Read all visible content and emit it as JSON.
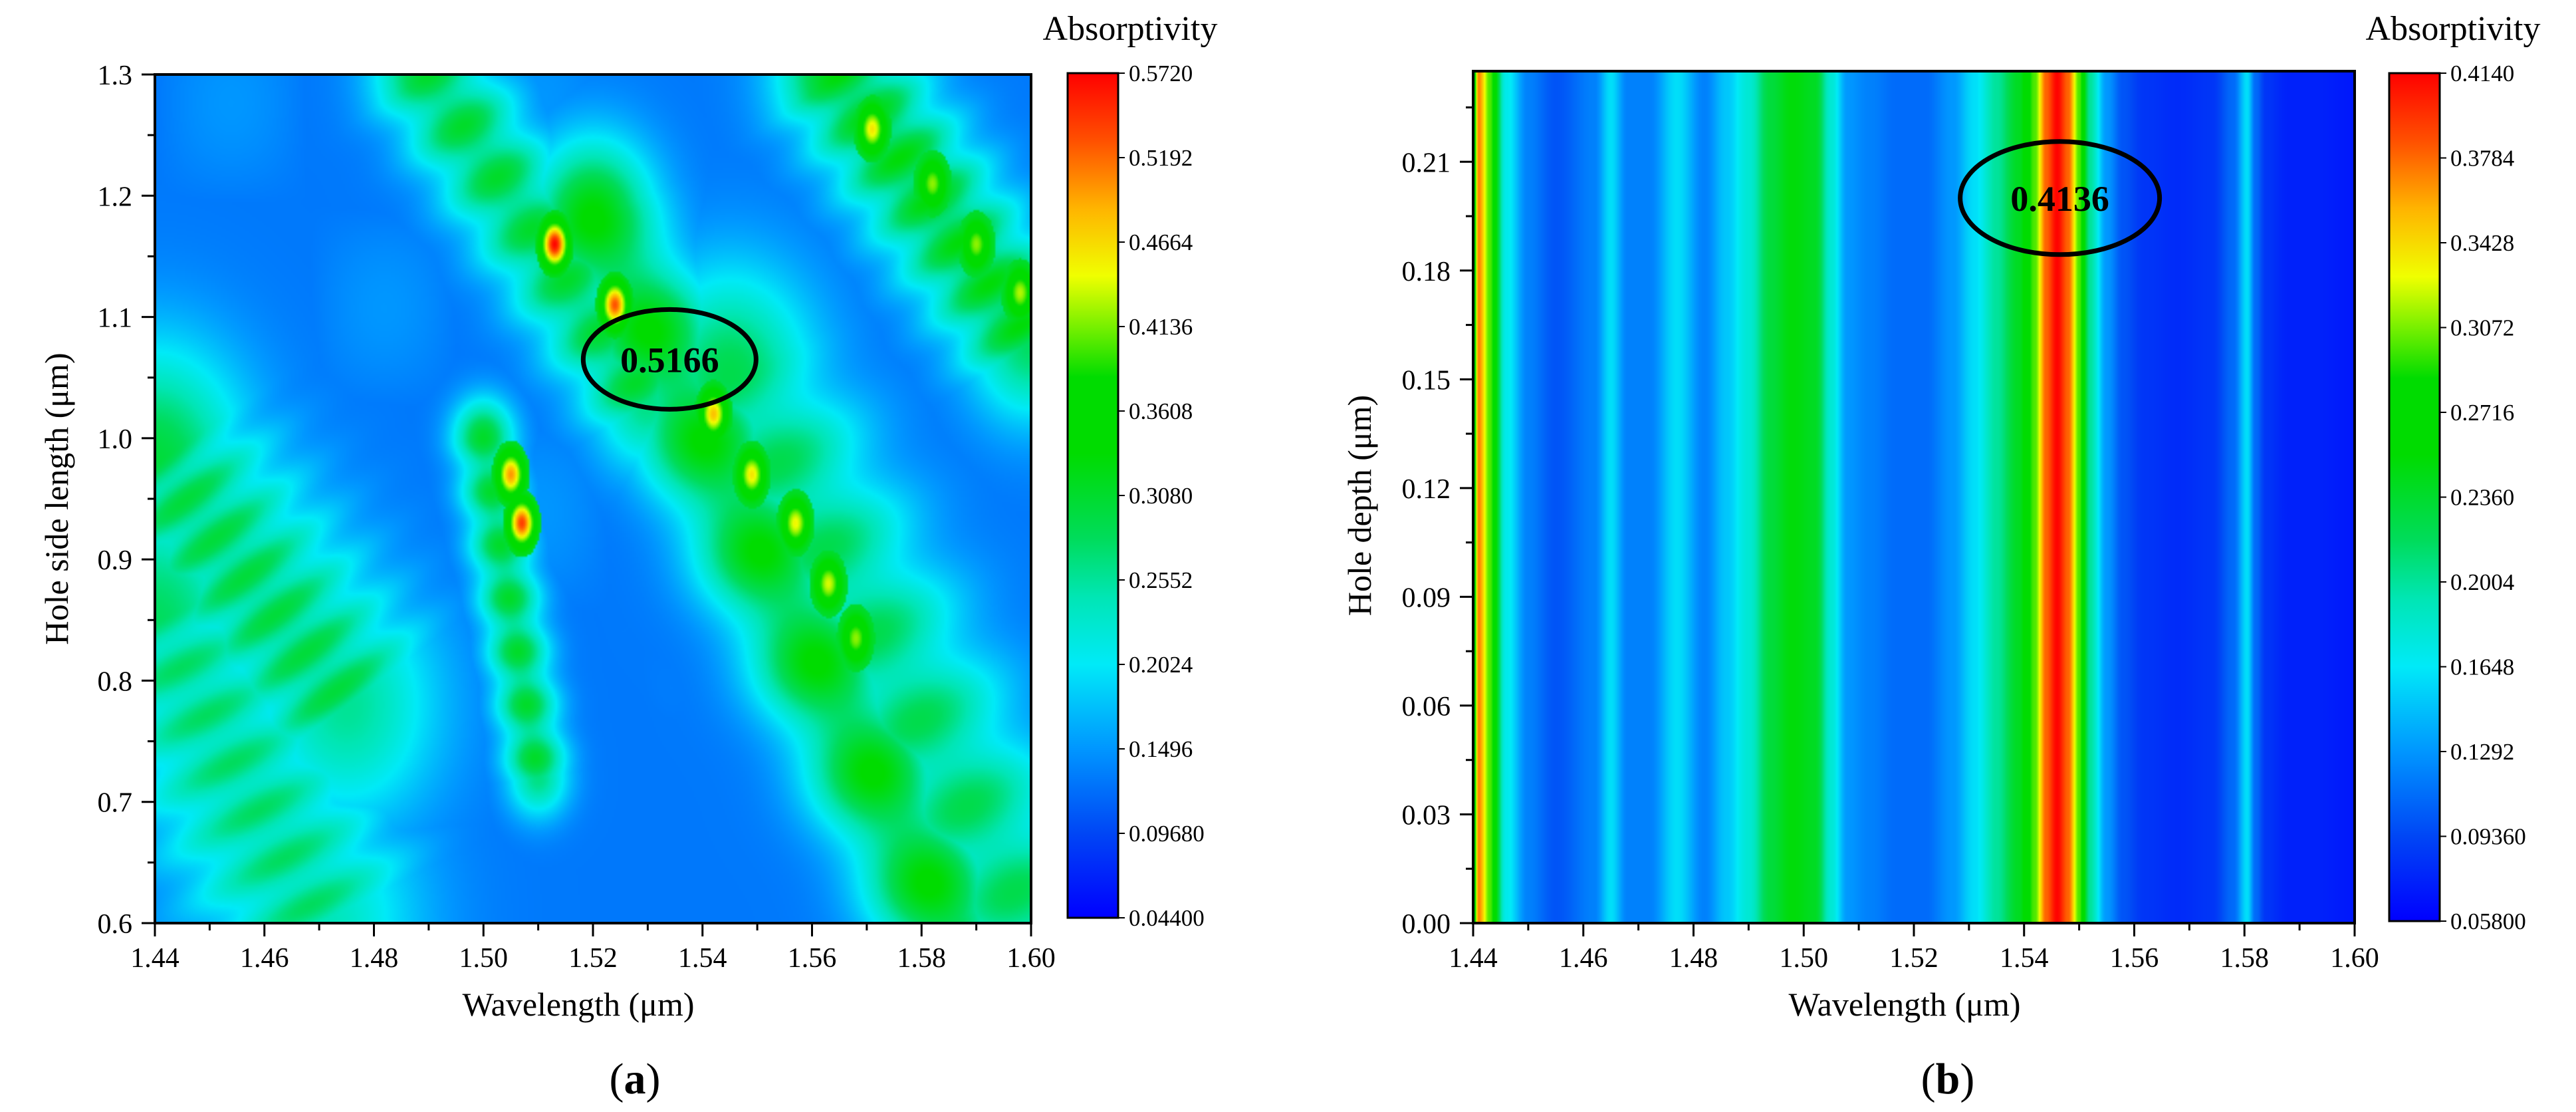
{
  "chart_data": [
    {
      "type": "heatmap",
      "panel_label": "a",
      "xlabel": "Wavelength (μm)",
      "ylabel": "Hole side length (μm)",
      "x_range": [
        1.44,
        1.6
      ],
      "y_range": [
        0.6,
        1.3
      ],
      "x_ticks": [
        "1.44",
        "1.46",
        "1.48",
        "1.50",
        "1.52",
        "1.54",
        "1.56",
        "1.58",
        "1.60"
      ],
      "y_ticks": [
        "0.6",
        "0.7",
        "0.8",
        "0.9",
        "1.0",
        "1.1",
        "1.2",
        "1.3"
      ],
      "colorbar": {
        "title": "Absorptivity",
        "min": 0.044,
        "max": 0.572,
        "tick_labels": [
          "0.5720",
          "0.5192",
          "0.4664",
          "0.4136",
          "0.3608",
          "0.3080",
          "0.2552",
          "0.2024",
          "0.1496",
          "0.09680",
          "0.04400"
        ]
      },
      "background_value": 0.13,
      "features": [
        {
          "kind": "band",
          "from": [
            1.44,
            0.98
          ],
          "to": [
            1.475,
            0.78
          ],
          "value": 0.3,
          "width_x": 0.012
        },
        {
          "kind": "band",
          "from": [
            1.44,
            0.85
          ],
          "to": [
            1.47,
            0.6
          ],
          "value": 0.28,
          "width_x": 0.013
        },
        {
          "kind": "band",
          "from": [
            1.49,
            1.3
          ],
          "to": [
            1.53,
            1.03
          ],
          "value": 0.31,
          "width_x": 0.007
        },
        {
          "kind": "band",
          "from": [
            1.52,
            1.18
          ],
          "to": [
            1.585,
            0.6
          ],
          "value": 0.34,
          "width_x": 0.008
        },
        {
          "kind": "band",
          "from": [
            1.545,
            1.05
          ],
          "to": [
            1.6,
            0.6
          ],
          "value": 0.29,
          "width_x": 0.011
        },
        {
          "kind": "band",
          "from": [
            1.565,
            1.3
          ],
          "to": [
            1.6,
            1.08
          ],
          "value": 0.33,
          "width_x": 0.008
        },
        {
          "kind": "band",
          "from": [
            1.5,
            1.0
          ],
          "to": [
            1.51,
            0.72
          ],
          "value": 0.31,
          "width_x": 0.004
        },
        {
          "kind": "spot",
          "x": 1.513,
          "y": 1.16,
          "value": 0.57
        },
        {
          "kind": "spot",
          "x": 1.524,
          "y": 1.11,
          "value": 0.53
        },
        {
          "kind": "spot",
          "x": 1.507,
          "y": 0.93,
          "value": 0.54
        },
        {
          "kind": "spot",
          "x": 1.505,
          "y": 0.97,
          "value": 0.5
        },
        {
          "kind": "spot",
          "x": 1.542,
          "y": 1.02,
          "value": 0.48
        },
        {
          "kind": "spot",
          "x": 1.549,
          "y": 0.97,
          "value": 0.46
        },
        {
          "kind": "spot",
          "x": 1.557,
          "y": 0.93,
          "value": 0.45
        },
        {
          "kind": "spot",
          "x": 1.563,
          "y": 0.88,
          "value": 0.44
        },
        {
          "kind": "spot",
          "x": 1.568,
          "y": 0.835,
          "value": 0.42
        },
        {
          "kind": "spot",
          "x": 1.571,
          "y": 1.255,
          "value": 0.46
        },
        {
          "kind": "spot",
          "x": 1.582,
          "y": 1.21,
          "value": 0.42
        },
        {
          "kind": "spot",
          "x": 1.59,
          "y": 1.16,
          "value": 0.42
        },
        {
          "kind": "spot",
          "x": 1.598,
          "y": 1.12,
          "value": 0.43
        }
      ],
      "annotation": {
        "text": "0.5166",
        "x": 1.534,
        "y": 1.065
      }
    },
    {
      "type": "heatmap",
      "panel_label": "b",
      "xlabel": "Wavelength (μm)",
      "ylabel": "Hole depth (μm)",
      "x_range": [
        1.44,
        1.6
      ],
      "y_range": [
        0.0,
        0.235
      ],
      "x_ticks": [
        "1.44",
        "1.46",
        "1.48",
        "1.50",
        "1.52",
        "1.54",
        "1.56",
        "1.58",
        "1.60"
      ],
      "y_ticks": [
        "0.00",
        "0.03",
        "0.06",
        "0.09",
        "0.12",
        "0.15",
        "0.18",
        "0.21"
      ],
      "colorbar": {
        "title": "Absorptivity",
        "min": 0.058,
        "max": 0.414,
        "tick_labels": [
          "0.4140",
          "0.3784",
          "0.3428",
          "0.3072",
          "0.2716",
          "0.2360",
          "0.2004",
          "0.1648",
          "0.1292",
          "0.09360",
          "0.05800"
        ]
      },
      "absorption_profile": {
        "x": [
          1.44,
          1.441,
          1.443,
          1.446,
          1.45,
          1.455,
          1.462,
          1.465,
          1.468,
          1.472,
          1.477,
          1.482,
          1.486,
          1.49,
          1.494,
          1.498,
          1.502,
          1.505,
          1.508,
          1.512,
          1.517,
          1.522,
          1.527,
          1.531,
          1.535,
          1.539,
          1.542,
          1.544,
          1.546,
          1.548,
          1.55,
          1.552,
          1.555,
          1.558,
          1.562,
          1.568,
          1.574,
          1.578,
          1.5805,
          1.582,
          1.584,
          1.588,
          1.593,
          1.6
        ],
        "value": [
          0.23,
          0.37,
          0.3,
          0.17,
          0.12,
          0.1,
          0.12,
          0.16,
          0.12,
          0.12,
          0.16,
          0.12,
          0.15,
          0.18,
          0.23,
          0.25,
          0.24,
          0.18,
          0.13,
          0.12,
          0.11,
          0.11,
          0.13,
          0.16,
          0.2,
          0.24,
          0.3,
          0.38,
          0.413,
          0.38,
          0.3,
          0.2,
          0.13,
          0.1,
          0.085,
          0.08,
          0.085,
          0.11,
          0.16,
          0.11,
          0.085,
          0.075,
          0.075,
          0.07
        ]
      },
      "annotation": {
        "text": "0.4136",
        "x": 1.5465,
        "y": 0.2
      }
    }
  ]
}
